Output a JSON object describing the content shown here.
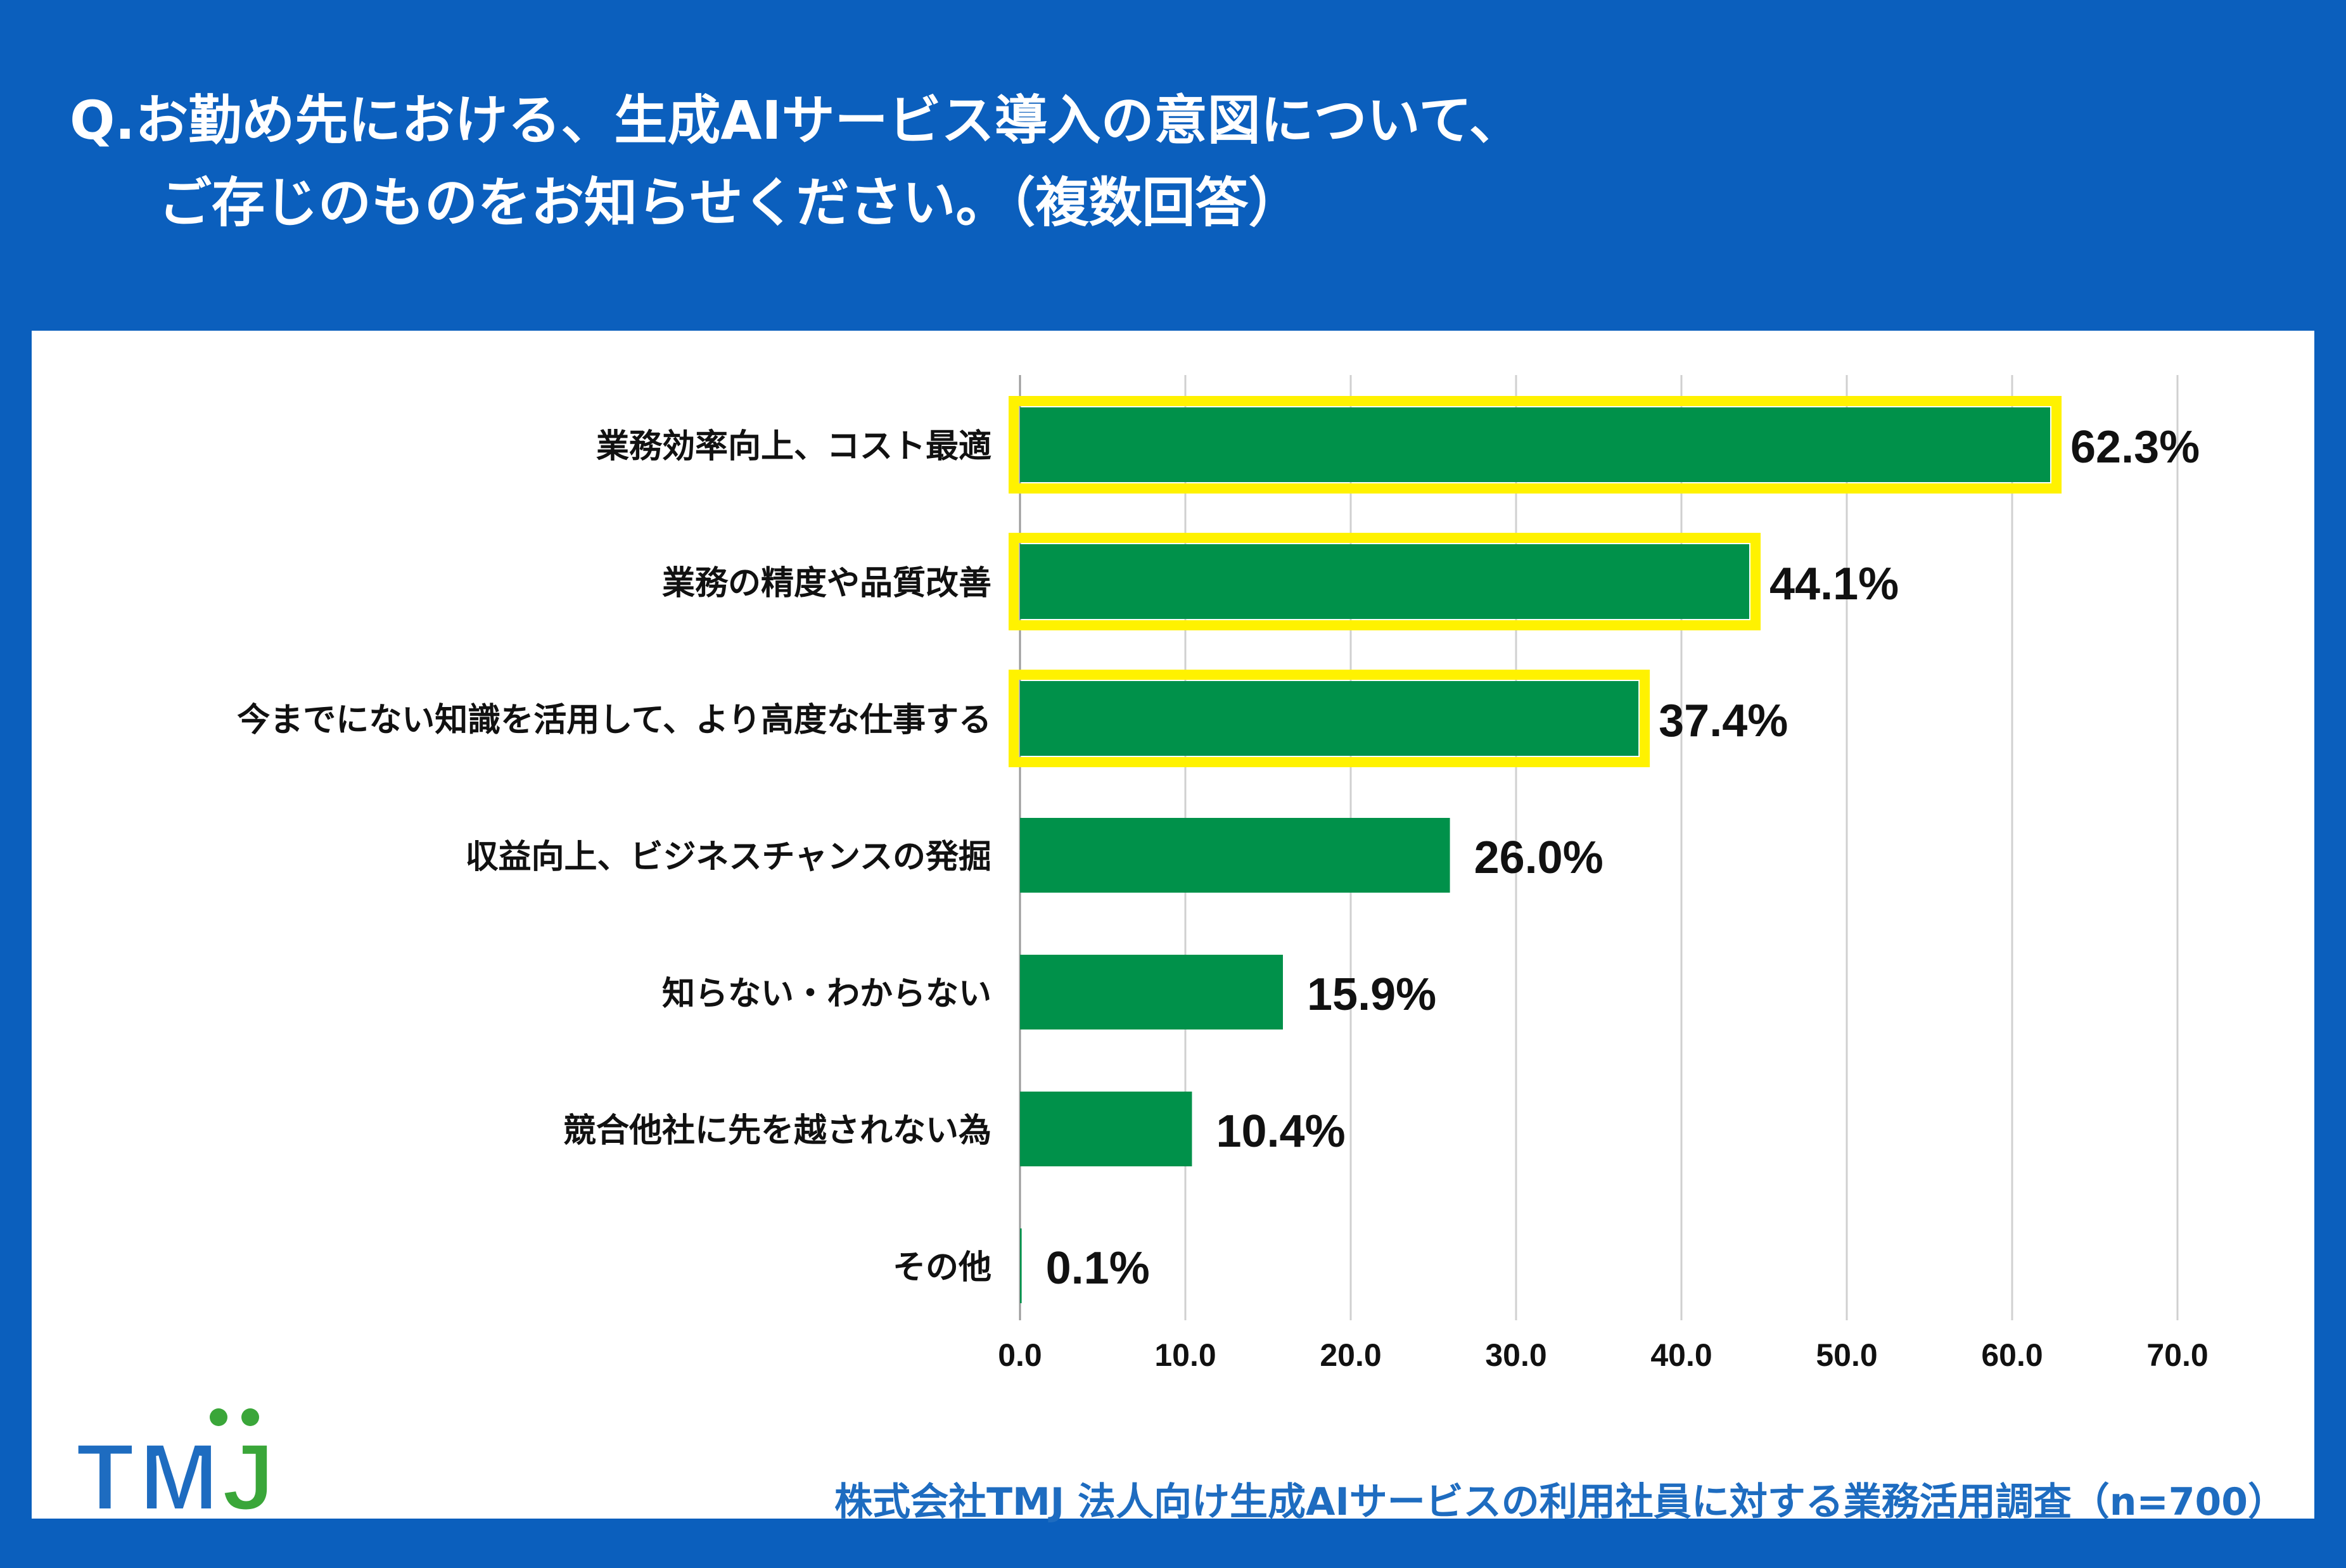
{
  "question": {
    "line1": "Q.お勤め先における、生成AIサービス導入の意図について、",
    "line2": "ご存じのものをお知らせください。（複数回答）"
  },
  "chart_data": {
    "type": "bar",
    "orientation": "horizontal",
    "categories": [
      "業務効率向上、コスト最適",
      "業務の精度や品質改善",
      "今までにない知識を活用して、より高度な仕事する",
      "収益向上、ビジネスチャンスの発掘",
      "知らない・わからない",
      "競合他社に先を越されない為",
      "その他"
    ],
    "values": [
      62.3,
      44.1,
      37.4,
      26.0,
      15.9,
      10.4,
      0.1
    ],
    "value_labels": [
      "62.3%",
      "44.1%",
      "37.4%",
      "26.0%",
      "15.9%",
      "10.4%",
      "0.1%"
    ],
    "highlighted": [
      true,
      true,
      true,
      false,
      false,
      false,
      false
    ],
    "xlim": [
      0,
      70
    ],
    "xticks": [
      "0.0",
      "10.0",
      "20.0",
      "30.0",
      "40.0",
      "50.0",
      "60.0",
      "70.0"
    ],
    "grid": true,
    "bar_color": "#00914a",
    "highlight_color": "#fff200"
  },
  "logo": {
    "letters": [
      "T",
      "M",
      "J"
    ]
  },
  "footer": "株式会社TMJ  法人向け生成AIサービスの利用社員に対する業務活用調査（n=700）",
  "colors": {
    "background": "#0b5fbd",
    "panel": "#ffffff",
    "logo_blue": "#1e6cc0",
    "logo_green": "#3aa639"
  }
}
